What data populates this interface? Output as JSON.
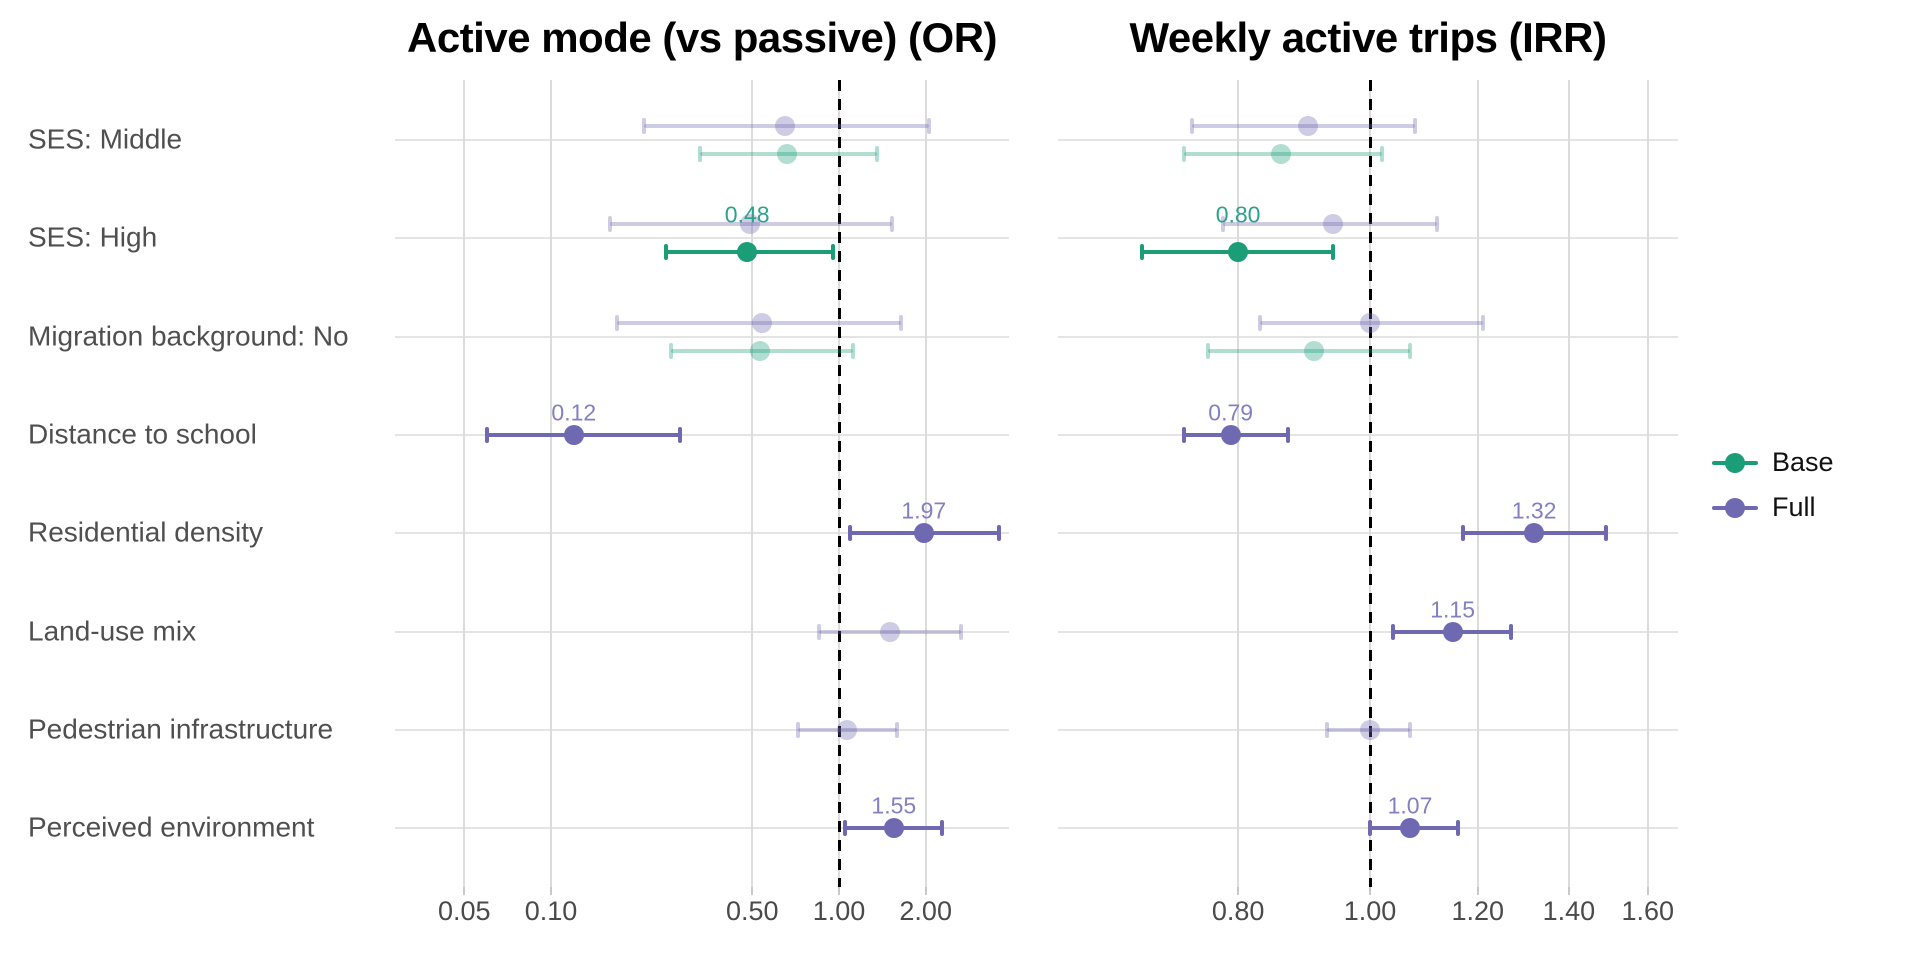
{
  "chart_data": {
    "type": "scatter",
    "variant": "forest-plot-pointrange",
    "grid": true,
    "legend_position": "right",
    "rows": [
      "SES: Middle",
      "SES: High",
      "Migration background: No",
      "Distance to school",
      "Residential density",
      "Land-use mix",
      "Pedestrian infrastructure",
      "Perceived environment"
    ],
    "legend": [
      {
        "label": "Base",
        "series": "Base"
      },
      {
        "label": "Full",
        "series": "Full"
      }
    ],
    "palette": {
      "base": "#1b9e77",
      "full": "#6e69b0",
      "base_label": "#2ea18c",
      "full_label": "#8380c1",
      "ref_line": "#000000",
      "grid": "#dcdcdc",
      "axis_text": "#4a4a4a",
      "row_label_text": "#4f4f4f"
    },
    "panels": [
      {
        "title": "Active mode (vs passive) (OR)",
        "measure": "OR",
        "scale": "log10",
        "ref_value": 1.0,
        "xlim": [
          0.029,
          3.9
        ],
        "ticks": [
          {
            "value": 0.05,
            "label": "0.05"
          },
          {
            "value": 0.1,
            "label": "0.10"
          },
          {
            "value": 0.5,
            "label": "0.50"
          },
          {
            "value": 1.0,
            "label": "1.00"
          },
          {
            "value": 2.0,
            "label": "2.00"
          }
        ],
        "points": [
          {
            "row": 0,
            "model": "Full",
            "est": 0.65,
            "lo": 0.21,
            "hi": 2.05,
            "sig": false,
            "label": ""
          },
          {
            "row": 0,
            "model": "Base",
            "est": 0.66,
            "lo": 0.33,
            "hi": 1.36,
            "sig": false,
            "label": ""
          },
          {
            "row": 1,
            "model": "Full",
            "est": 0.49,
            "lo": 0.16,
            "hi": 1.53,
            "sig": false,
            "label": ""
          },
          {
            "row": 1,
            "model": "Base",
            "est": 0.48,
            "lo": 0.25,
            "hi": 0.95,
            "sig": true,
            "label": "0.48"
          },
          {
            "row": 2,
            "model": "Full",
            "est": 0.54,
            "lo": 0.17,
            "hi": 1.64,
            "sig": false,
            "label": ""
          },
          {
            "row": 2,
            "model": "Base",
            "est": 0.53,
            "lo": 0.26,
            "hi": 1.12,
            "sig": false,
            "label": ""
          },
          {
            "row": 3,
            "model": "Full",
            "est": 0.12,
            "lo": 0.06,
            "hi": 0.28,
            "sig": true,
            "label": "0.12"
          },
          {
            "row": 4,
            "model": "Full",
            "est": 1.97,
            "lo": 1.09,
            "hi": 3.6,
            "sig": true,
            "label": "1.97"
          },
          {
            "row": 5,
            "model": "Full",
            "est": 1.5,
            "lo": 0.85,
            "hi": 2.66,
            "sig": false,
            "label": ""
          },
          {
            "row": 6,
            "model": "Full",
            "est": 1.07,
            "lo": 0.72,
            "hi": 1.59,
            "sig": false,
            "label": ""
          },
          {
            "row": 7,
            "model": "Full",
            "est": 1.55,
            "lo": 1.05,
            "hi": 2.28,
            "sig": true,
            "label": "1.55"
          }
        ]
      },
      {
        "title": "Weekly active trips (IRR)",
        "measure": "IRR",
        "scale": "log10",
        "ref_value": 1.0,
        "xlim": [
          0.59,
          1.68
        ],
        "ticks": [
          {
            "value": 0.8,
            "label": "0.80"
          },
          {
            "value": 1.0,
            "label": "1.00"
          },
          {
            "value": 1.2,
            "label": "1.20"
          },
          {
            "value": 1.4,
            "label": "1.40"
          },
          {
            "value": 1.6,
            "label": "1.60"
          }
        ],
        "points": [
          {
            "row": 0,
            "model": "Full",
            "est": 0.9,
            "lo": 0.74,
            "hi": 1.08,
            "sig": false,
            "label": ""
          },
          {
            "row": 0,
            "model": "Base",
            "est": 0.86,
            "lo": 0.73,
            "hi": 1.02,
            "sig": false,
            "label": ""
          },
          {
            "row": 1,
            "model": "Full",
            "est": 0.94,
            "lo": 0.78,
            "hi": 1.12,
            "sig": false,
            "label": ""
          },
          {
            "row": 1,
            "model": "Base",
            "est": 0.8,
            "lo": 0.68,
            "hi": 0.94,
            "sig": true,
            "label": "0.80"
          },
          {
            "row": 2,
            "model": "Full",
            "est": 1.0,
            "lo": 0.83,
            "hi": 1.21,
            "sig": false,
            "label": ""
          },
          {
            "row": 2,
            "model": "Base",
            "est": 0.91,
            "lo": 0.76,
            "hi": 1.07,
            "sig": false,
            "label": ""
          },
          {
            "row": 3,
            "model": "Full",
            "est": 0.79,
            "lo": 0.73,
            "hi": 0.87,
            "sig": true,
            "label": "0.79"
          },
          {
            "row": 4,
            "model": "Full",
            "est": 1.32,
            "lo": 1.17,
            "hi": 1.49,
            "sig": true,
            "label": "1.32"
          },
          {
            "row": 5,
            "model": "Full",
            "est": 1.15,
            "lo": 1.04,
            "hi": 1.27,
            "sig": true,
            "label": "1.15"
          },
          {
            "row": 6,
            "model": "Full",
            "est": 1.0,
            "lo": 0.93,
            "hi": 1.07,
            "sig": false,
            "label": ""
          },
          {
            "row": 7,
            "model": "Full",
            "est": 1.07,
            "lo": 1.0,
            "hi": 1.16,
            "sig": true,
            "label": "1.07"
          }
        ]
      }
    ]
  }
}
